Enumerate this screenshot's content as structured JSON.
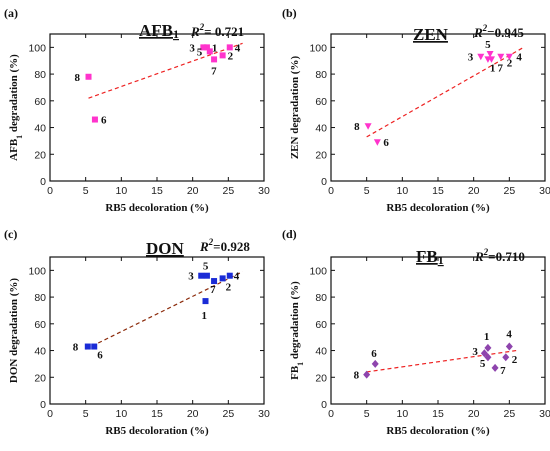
{
  "chart_data": [
    {
      "type": "scatter",
      "panel_label": "(a)",
      "title": "AFB",
      "title_sub": "1",
      "r2_prefix": "R",
      "r2_sup": "2",
      "r2_value": "= 0.721",
      "xlabel": "RB5 decoloration (%)",
      "ylabel_main": "AFB",
      "ylabel_sub": "1",
      "ylabel_rest": " degradation (%)",
      "xlim": [
        0,
        30
      ],
      "ylim": [
        0,
        110
      ],
      "xticks": [
        "0",
        "5",
        "10",
        "15",
        "20",
        "25",
        "30"
      ],
      "yticks": [
        "0",
        "20",
        "40",
        "60",
        "80",
        "100"
      ],
      "marker": "square",
      "color": "#ff33cc",
      "points": [
        {
          "label": "1",
          "x": 22.0,
          "y": 100
        },
        {
          "label": "2",
          "x": 24.2,
          "y": 94
        },
        {
          "label": "3",
          "x": 21.5,
          "y": 100
        },
        {
          "label": "4",
          "x": 25.2,
          "y": 100
        },
        {
          "label": "5",
          "x": 22.4,
          "y": 97
        },
        {
          "label": "6",
          "x": 6.3,
          "y": 46
        },
        {
          "label": "7",
          "x": 23.0,
          "y": 91
        },
        {
          "label": "8",
          "x": 5.4,
          "y": 78
        }
      ],
      "fit": {
        "x": [
          5.4,
          27
        ],
        "y": [
          62,
          103
        ]
      },
      "fit_color": "#ee2222"
    },
    {
      "type": "scatter",
      "panel_label": "(b)",
      "title": "ZEN",
      "title_sub": "",
      "r2_prefix": "R",
      "r2_sup": "2",
      "r2_value": "=0.945",
      "xlabel": "RB5 decoloration (%)",
      "ylabel_main": "ZEN",
      "ylabel_sub": "",
      "ylabel_rest": " degradation (%)",
      "xlim": [
        0,
        30
      ],
      "ylim": [
        0,
        110
      ],
      "xticks": [
        "0",
        "5",
        "10",
        "15",
        "20",
        "25",
        "30"
      ],
      "yticks": [
        "0",
        "20",
        "40",
        "60",
        "80",
        "100"
      ],
      "marker": "triangle-down",
      "color": "#ff33cc",
      "points": [
        {
          "label": "1",
          "x": 22.0,
          "y": 91
        },
        {
          "label": "2",
          "x": 23.8,
          "y": 93
        },
        {
          "label": "3",
          "x": 21.0,
          "y": 93
        },
        {
          "label": "4",
          "x": 25.0,
          "y": 93
        },
        {
          "label": "5",
          "x": 22.3,
          "y": 95
        },
        {
          "label": "6",
          "x": 6.5,
          "y": 29
        },
        {
          "label": "7",
          "x": 22.5,
          "y": 91
        },
        {
          "label": "8",
          "x": 5.2,
          "y": 41
        }
      ],
      "fit": {
        "x": [
          5,
          27
        ],
        "y": [
          33,
          100
        ]
      },
      "fit_color": "#ee2222"
    },
    {
      "type": "scatter",
      "panel_label": "(c)",
      "title": "DON",
      "title_sub": "",
      "r2_prefix": "R",
      "r2_sup": "2",
      "r2_value": "=0.928",
      "xlabel": "RB5 decoloration (%)",
      "ylabel_main": "DON",
      "ylabel_sub": "",
      "ylabel_rest": " degradation (%)",
      "xlim": [
        0,
        30
      ],
      "ylim": [
        0,
        110
      ],
      "xticks": [
        "0",
        "5",
        "10",
        "15",
        "20",
        "25",
        "30"
      ],
      "yticks": [
        "0",
        "20",
        "40",
        "60",
        "80",
        "100"
      ],
      "marker": "square",
      "color": "#1a2bd6",
      "points": [
        {
          "label": "1",
          "x": 21.8,
          "y": 77
        },
        {
          "label": "2",
          "x": 24.2,
          "y": 94
        },
        {
          "label": "3",
          "x": 21.2,
          "y": 96
        },
        {
          "label": "4",
          "x": 25.2,
          "y": 96
        },
        {
          "label": "5",
          "x": 22.0,
          "y": 96
        },
        {
          "label": "6",
          "x": 6.2,
          "y": 43
        },
        {
          "label": "7",
          "x": 23.0,
          "y": 92
        },
        {
          "label": "8",
          "x": 5.3,
          "y": 43
        }
      ],
      "fit": {
        "x": [
          5,
          27
        ],
        "y": [
          41,
          99
        ]
      },
      "fit_color": "#8b2a0a"
    },
    {
      "type": "scatter",
      "panel_label": "(d)",
      "title": "FB",
      "title_sub": "1",
      "r2_prefix": "R",
      "r2_sup": "2",
      "r2_value": "=0.710",
      "xlabel": "RB5 decoloration (%)",
      "ylabel_main": "FB",
      "ylabel_sub": "1",
      "ylabel_rest": " degradation (%)",
      "xlim": [
        0,
        30
      ],
      "ylim": [
        0,
        110
      ],
      "xticks": [
        "0",
        "5",
        "10",
        "15",
        "20",
        "25",
        "30"
      ],
      "yticks": [
        "0",
        "20",
        "40",
        "60",
        "80",
        "100"
      ],
      "marker": "diamond",
      "color": "#8e44ad",
      "points": [
        {
          "label": "1",
          "x": 22.0,
          "y": 42
        },
        {
          "label": "2",
          "x": 24.5,
          "y": 35
        },
        {
          "label": "3",
          "x": 21.5,
          "y": 38
        },
        {
          "label": "4",
          "x": 25.0,
          "y": 43
        },
        {
          "label": "5",
          "x": 22.0,
          "y": 35
        },
        {
          "label": "6",
          "x": 6.2,
          "y": 30
        },
        {
          "label": "7",
          "x": 23.0,
          "y": 27
        },
        {
          "label": "8",
          "x": 5.0,
          "y": 22
        }
      ],
      "fit": {
        "x": [
          5,
          26
        ],
        "y": [
          24,
          40
        ]
      },
      "fit_color": "#ee2222"
    }
  ]
}
